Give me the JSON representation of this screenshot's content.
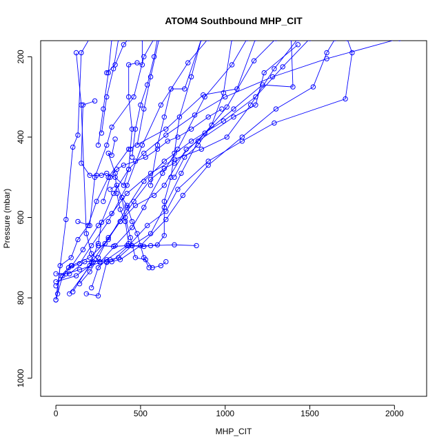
{
  "chart_data": {
    "type": "scatter",
    "title": "ATOM4 Southbound MHP_CIT",
    "xlabel": "MHP_CIT",
    "ylabel": "Pressure (mbar)",
    "xlim": [
      -90,
      2190
    ],
    "ylim": [
      1045,
      160
    ],
    "y_reversed": true,
    "x_ticks": [
      0,
      500,
      1000,
      1500,
      2000
    ],
    "y_ticks": [
      200,
      400,
      600,
      800,
      1000
    ],
    "grid": false,
    "legend": "none",
    "series_color": "#0000ff",
    "profiles": [
      [
        [
          0,
          805
        ],
        [
          60,
          605
        ],
        [
          100,
          425
        ],
        [
          130,
          395
        ],
        [
          150,
          190
        ],
        [
          205,
          150
        ]
      ],
      [
        [
          10,
          790
        ],
        [
          25,
          720
        ],
        [
          90,
          700
        ],
        [
          130,
          655
        ],
        [
          190,
          620
        ],
        [
          240,
          560
        ],
        [
          310,
          500
        ],
        [
          430,
          430
        ],
        [
          650,
          380
        ],
        [
          870,
          295
        ],
        [
          1070,
          280
        ],
        [
          1180,
          155
        ]
      ],
      [
        [
          30,
          745
        ],
        [
          75,
          725
        ],
        [
          140,
          715
        ],
        [
          210,
          670
        ],
        [
          310,
          610
        ],
        [
          420,
          520
        ],
        [
          510,
          420
        ],
        [
          620,
          320
        ],
        [
          780,
          215
        ],
        [
          900,
          155
        ]
      ],
      [
        [
          0,
          805
        ],
        [
          40,
          745
        ],
        [
          95,
          720
        ],
        [
          160,
          680
        ],
        [
          250,
          620
        ],
        [
          330,
          590
        ],
        [
          420,
          540
        ],
        [
          560,
          490
        ],
        [
          700,
          455
        ],
        [
          860,
          430
        ],
        [
          1010,
          400
        ],
        [
          1150,
          320
        ],
        [
          1290,
          230
        ],
        [
          1430,
          155
        ]
      ],
      [
        [
          0,
          770
        ],
        [
          90,
          720
        ],
        [
          200,
          700
        ],
        [
          310,
          655
        ],
        [
          420,
          575
        ],
        [
          520,
          510
        ],
        [
          640,
          460
        ],
        [
          800,
          410
        ],
        [
          990,
          360
        ],
        [
          1180,
          300
        ],
        [
          1340,
          225
        ],
        [
          1500,
          155
        ]
      ],
      [
        [
          60,
          740
        ],
        [
          140,
          730
        ],
        [
          260,
          712
        ],
        [
          350,
          670
        ],
        [
          450,
          625
        ],
        [
          520,
          575
        ],
        [
          630,
          490
        ],
        [
          720,
          430
        ],
        [
          880,
          300
        ],
        [
          1040,
          220
        ],
        [
          1130,
          155
        ]
      ],
      [
        [
          0,
          740
        ],
        [
          80,
          740
        ],
        [
          170,
          710
        ],
        [
          320,
          705
        ],
        [
          370,
          700
        ],
        [
          450,
          670
        ],
        [
          560,
          640
        ],
        [
          640,
          575
        ],
        [
          740,
          490
        ],
        [
          840,
          410
        ],
        [
          1010,
          325
        ],
        [
          1170,
          210
        ],
        [
          1300,
          155
        ]
      ],
      [
        [
          100,
          785
        ],
        [
          210,
          712
        ],
        [
          290,
          665
        ],
        [
          380,
          610
        ],
        [
          470,
          570
        ],
        [
          580,
          545
        ],
        [
          640,
          520
        ],
        [
          770,
          430
        ],
        [
          1050,
          350
        ],
        [
          1180,
          320
        ],
        [
          1230,
          240
        ],
        [
          1430,
          170
        ]
      ],
      [
        [
          80,
          790
        ],
        [
          220,
          710
        ],
        [
          330,
          710
        ],
        [
          430,
          670
        ],
        [
          540,
          620
        ],
        [
          650,
          585
        ],
        [
          720,
          530
        ],
        [
          900,
          460
        ],
        [
          1100,
          410
        ],
        [
          1290,
          365
        ],
        [
          1710,
          305
        ],
        [
          1750,
          190
        ],
        [
          1720,
          155
        ]
      ],
      [
        [
          180,
          790
        ],
        [
          250,
          795
        ],
        [
          300,
          712
        ],
        [
          380,
          705
        ],
        [
          500,
          670
        ],
        [
          650,
          605
        ],
        [
          750,
          545
        ],
        [
          900,
          470
        ],
        [
          1100,
          400
        ],
        [
          1300,
          330
        ],
        [
          1520,
          275
        ],
        [
          1600,
          190
        ],
        [
          1650,
          155
        ]
      ],
      [
        [
          0,
          760
        ],
        [
          120,
          745
        ],
        [
          200,
          720
        ],
        [
          250,
          665
        ],
        [
          270,
          612
        ],
        [
          340,
          540
        ],
        [
          430,
          480
        ],
        [
          520,
          440
        ],
        [
          650,
          395
        ],
        [
          820,
          345
        ],
        [
          1000,
          300
        ],
        [
          1280,
          250
        ],
        [
          1600,
          205
        ],
        [
          2030,
          155
        ]
      ],
      [
        [
          140,
          765
        ],
        [
          200,
          735
        ],
        [
          250,
          700
        ],
        [
          310,
          650
        ],
        [
          380,
          610
        ],
        [
          460,
          560
        ],
        [
          560,
          505
        ],
        [
          640,
          478
        ],
        [
          700,
          465
        ],
        [
          880,
          390
        ],
        [
          1050,
          330
        ],
        [
          1220,
          270
        ],
        [
          1400,
          275
        ],
        [
          1390,
          155
        ]
      ],
      [
        [
          210,
          775
        ],
        [
          250,
          725
        ],
        [
          300,
          705
        ],
        [
          420,
          670
        ],
        [
          560,
          670
        ],
        [
          700,
          668
        ],
        [
          830,
          670
        ]
      ],
      [
        [
          250,
          670
        ],
        [
          340,
          672
        ],
        [
          420,
          670
        ],
        [
          520,
          672
        ],
        [
          600,
          668
        ],
        [
          640,
          645
        ],
        [
          640,
          560
        ],
        [
          680,
          500
        ],
        [
          700,
          440
        ],
        [
          730,
          350
        ],
        [
          800,
          250
        ],
        [
          860,
          155
        ]
      ],
      [
        [
          130,
          610
        ],
        [
          200,
          620
        ],
        [
          230,
          500
        ],
        [
          300,
          420
        ],
        [
          330,
          375
        ],
        [
          460,
          300
        ],
        [
          520,
          200
        ],
        [
          580,
          155
        ]
      ],
      [
        [
          230,
          310
        ],
        [
          160,
          320
        ],
        [
          150,
          465
        ],
        [
          200,
          495
        ],
        [
          240,
          495
        ],
        [
          270,
          495
        ],
        [
          300,
          490
        ],
        [
          350,
          500
        ],
        [
          400,
          520
        ],
        [
          430,
          480
        ],
        [
          440,
          430
        ],
        [
          450,
          380
        ],
        [
          430,
          300
        ],
        [
          430,
          220
        ],
        [
          480,
          215
        ],
        [
          510,
          220
        ],
        [
          510,
          155
        ]
      ],
      [
        [
          350,
          405
        ],
        [
          330,
          445
        ],
        [
          310,
          440
        ],
        [
          350,
          490
        ],
        [
          360,
          540
        ],
        [
          380,
          580
        ],
        [
          410,
          610
        ],
        [
          430,
          665
        ],
        [
          450,
          670
        ]
      ],
      [
        [
          120,
          190
        ],
        [
          150,
          320
        ],
        [
          180,
          640
        ],
        [
          210,
          690
        ],
        [
          260,
          710
        ],
        [
          300,
          710
        ]
      ],
      [
        [
          320,
          530
        ],
        [
          360,
          520
        ],
        [
          390,
          550
        ],
        [
          410,
          600
        ],
        [
          440,
          650
        ],
        [
          470,
          700
        ],
        [
          530,
          705
        ],
        [
          570,
          725
        ],
        [
          620,
          720
        ],
        [
          650,
          710
        ]
      ],
      [
        [
          390,
          550
        ],
        [
          420,
          570
        ],
        [
          450,
          610
        ],
        [
          480,
          640
        ],
        [
          520,
          700
        ],
        [
          550,
          725
        ]
      ],
      [
        [
          300,
          240
        ],
        [
          350,
          220
        ],
        [
          400,
          170
        ],
        [
          430,
          155
        ]
      ],
      [
        [
          270,
          390
        ],
        [
          300,
          300
        ],
        [
          340,
          230
        ],
        [
          370,
          155
        ]
      ],
      [
        [
          250,
          420
        ],
        [
          280,
          330
        ],
        [
          310,
          240
        ],
        [
          330,
          155
        ]
      ],
      [
        [
          560,
          520
        ],
        [
          600,
          420
        ],
        [
          640,
          350
        ],
        [
          680,
          280
        ],
        [
          760,
          280
        ],
        [
          860,
          155
        ]
      ],
      [
        [
          700,
          500
        ],
        [
          760,
          450
        ],
        [
          840,
          420
        ],
        [
          920,
          370
        ],
        [
          990,
          290
        ],
        [
          1040,
          155
        ]
      ],
      [
        [
          480,
          420
        ],
        [
          520,
          330
        ],
        [
          560,
          250
        ],
        [
          610,
          155
        ]
      ],
      [
        [
          450,
          450
        ],
        [
          470,
          380
        ],
        [
          500,
          320
        ],
        [
          540,
          270
        ],
        [
          580,
          200
        ],
        [
          600,
          155
        ]
      ],
      [
        [
          280,
          560
        ],
        [
          320,
          500
        ],
        [
          360,
          480
        ],
        [
          400,
          470
        ],
        [
          470,
          460
        ],
        [
          530,
          450
        ],
        [
          600,
          430
        ],
        [
          660,
          410
        ],
        [
          720,
          400
        ],
        [
          800,
          380
        ],
        [
          900,
          350
        ],
        [
          980,
          330
        ]
      ]
    ]
  }
}
